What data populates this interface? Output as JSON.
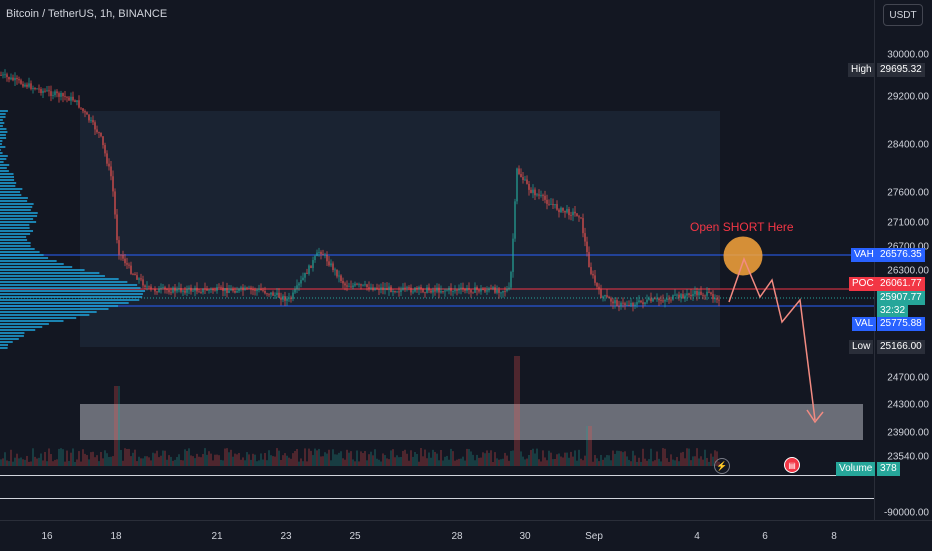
{
  "header": {
    "symbol_title": "Bitcoin / TetherUS, 1h, BINANCE"
  },
  "currency_button": {
    "label": "USDT"
  },
  "price_axis": {
    "ticks": [
      "30000.00",
      "29200.00",
      "28400.00",
      "27600.00",
      "27100.00",
      "26700.00",
      "26300.00",
      "24700.00",
      "24300.00",
      "23900.00",
      "23540.00",
      "-90000.00"
    ]
  },
  "price_tags": {
    "high": {
      "label": "High",
      "value": "29695.32"
    },
    "vah": {
      "label": "VAH",
      "value": "26576.35"
    },
    "poc": {
      "label": "POC",
      "value": "26061.77"
    },
    "last": {
      "value": "25907.77",
      "countdown": "32:32"
    },
    "val": {
      "label": "VAL",
      "value": "25775.88"
    },
    "low": {
      "label": "Low",
      "value": "25166.00"
    },
    "volume": {
      "label": "Volume",
      "value": "378"
    }
  },
  "annotation": {
    "text": "Open SHORT Here"
  },
  "time_axis": {
    "ticks": [
      "16",
      "18",
      "21",
      "23",
      "25",
      "28",
      "30",
      "Sep",
      "4",
      "6",
      "8"
    ]
  },
  "colors": {
    "background": "#131722",
    "candle_up": "#26a69a",
    "candle_down": "#ef5350",
    "vah_val_line": "#2962ff",
    "poc_line": "#f23645",
    "profile": "#1e9fd6",
    "annotation": "#f23645",
    "circle": "#f7a53b"
  },
  "icons": {
    "lightning": "lightning-icon",
    "flag": "us-flag-icon"
  }
}
